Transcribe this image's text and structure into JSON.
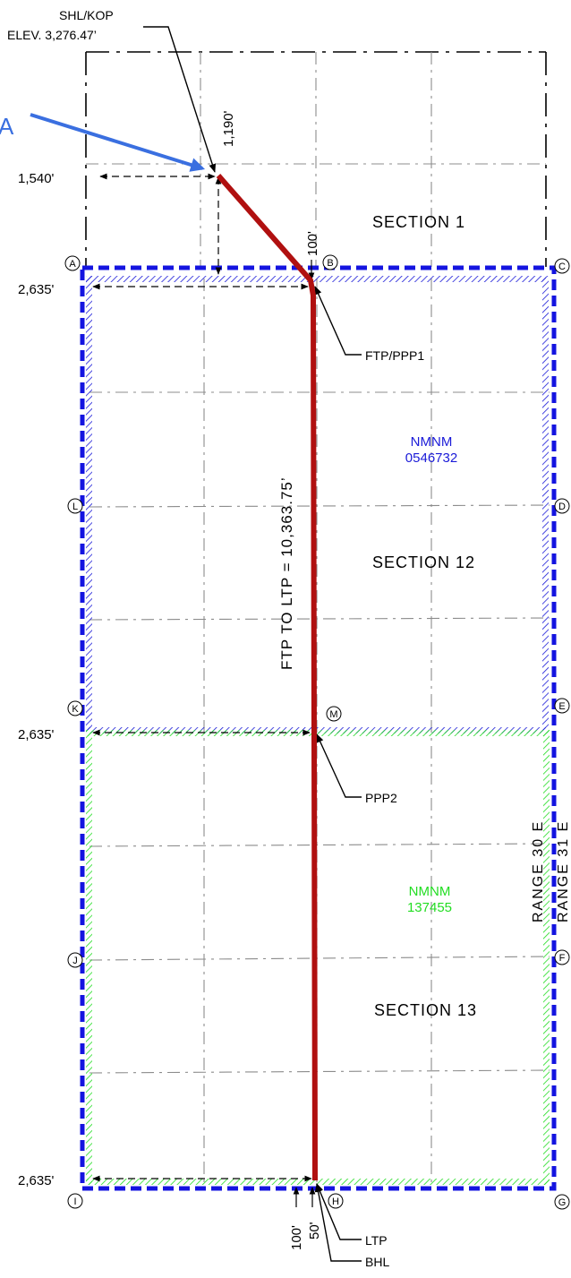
{
  "shl": {
    "label": "SHL/KOP",
    "elevation": "ELEV. 3,276.47’"
  },
  "pointer_a": {
    "label": "A",
    "color": "#3a6fe0"
  },
  "sections": {
    "s1": "SECTION 1",
    "s12": "SECTION 12",
    "s13": "SECTION 13"
  },
  "leases": {
    "upper": {
      "line1": "NMNM",
      "line2": "0546732",
      "color": "#1a1ad8"
    },
    "lower": {
      "line1": "NMNM",
      "line2": "137455",
      "color": "#22dd22"
    }
  },
  "ranges": {
    "r30": "RANGE 30 E",
    "r31": "RANGE 31 E"
  },
  "dims": {
    "d1540": "1,540'",
    "d1190": "1,190'",
    "d100_top": "100'",
    "d2635_a": "2,635'",
    "d2635_k": "2,635'",
    "d2635_i": "2,635'",
    "d100_bot": "100'",
    "d50_bot": "50'"
  },
  "lateral_length": "FTP TO LTP = 10,363.75’",
  "points": {
    "ftp": "FTP/PPP1",
    "ppp2": "PPP2",
    "ltp": "LTP",
    "bhl": "BHL"
  },
  "corners": {
    "A": "A",
    "B": "B",
    "C": "C",
    "D": "D",
    "E": "E",
    "F": "F",
    "G": "G",
    "H": "H",
    "I": "I",
    "J": "J",
    "K": "K",
    "L": "L",
    "M": "M"
  },
  "colors": {
    "wellbore": "#b01010",
    "unit_boundary": "#1414e0",
    "grid": "#8c8c8c"
  }
}
